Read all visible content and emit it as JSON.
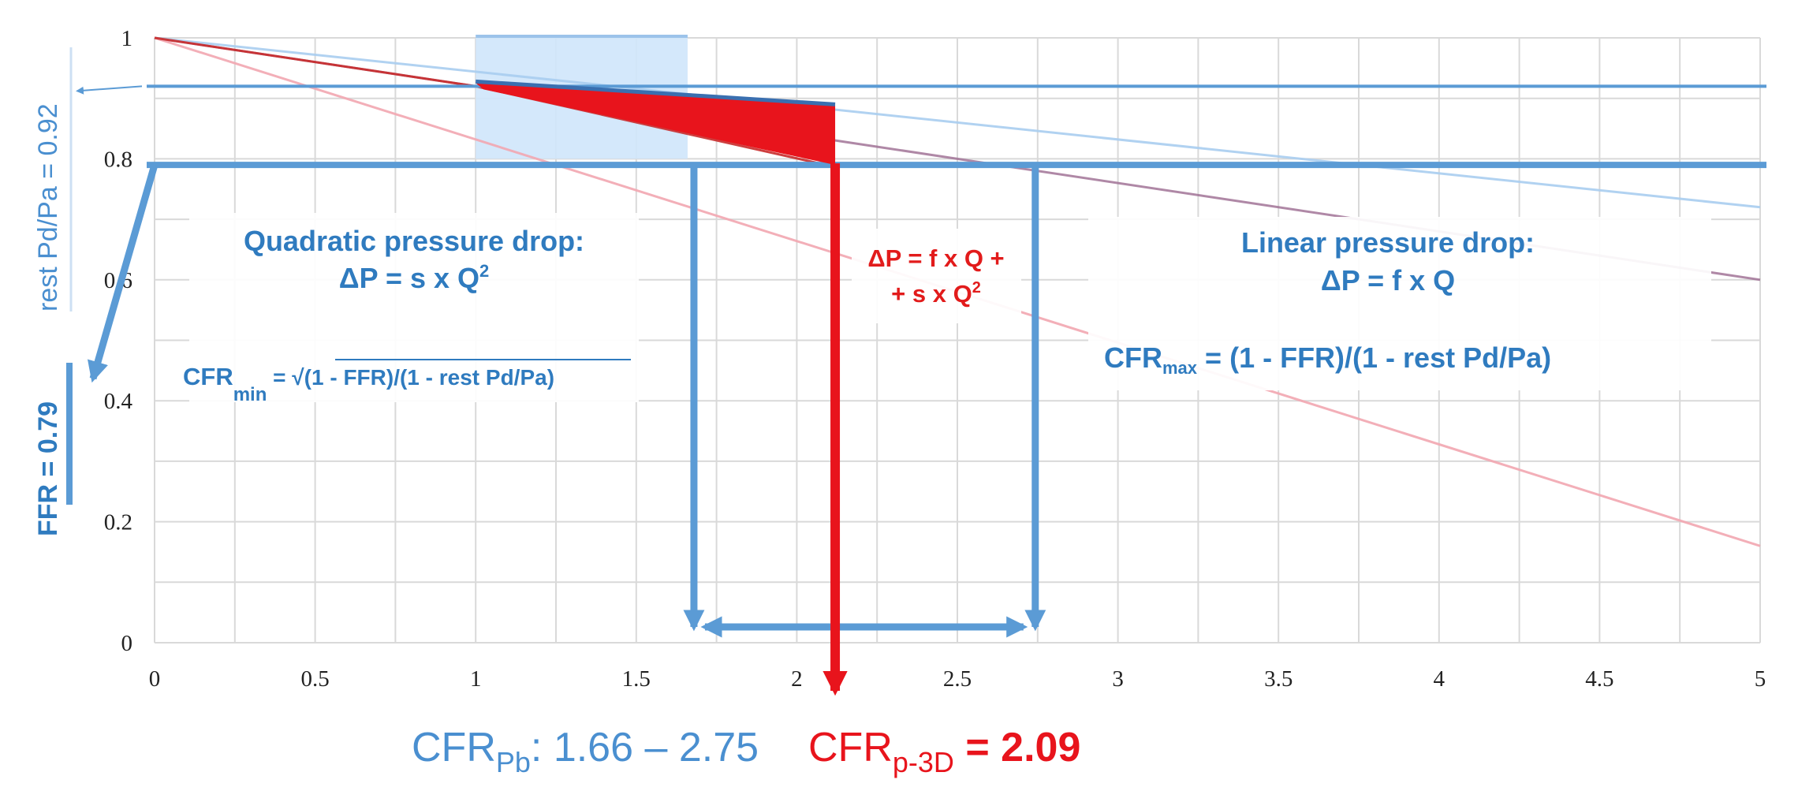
{
  "chart_data": {
    "type": "line",
    "xlim": [
      0,
      5
    ],
    "ylim": [
      0,
      1
    ],
    "x_ticks": [
      "0",
      "0.5",
      "1",
      "1.5",
      "2",
      "2.5",
      "3",
      "3.5",
      "4",
      "4.5",
      "5"
    ],
    "y_ticks": [
      "0",
      "0.2",
      "0.4",
      "0.6",
      "0.8",
      "1"
    ],
    "grid": true,
    "series": [
      {
        "x": [
          0,
          5
        ],
        "y": [
          1,
          0.6
        ]
      },
      {
        "x": [
          0,
          5
        ],
        "y": [
          1,
          0.72
        ]
      },
      {
        "x": [
          0,
          5
        ],
        "y": [
          1,
          0.16
        ]
      },
      {
        "x": [
          0,
          1,
          2.09
        ],
        "y": [
          1,
          0.92,
          0.79
        ]
      }
    ],
    "reference_lines": {
      "rest_pd_pa": 0.92,
      "ffr": 0.79
    },
    "cfr_values": {
      "cfr_min": 1.66,
      "cfr_p3d": 2.09,
      "cfr_max": 2.75
    },
    "labels": {
      "y_rest": "rest  Pd/Pa = 0.92",
      "y_ffr": "FFR = 0.79",
      "quad_title": "Quadratic pressure drop:",
      "quad_formula_main": "ΔP = s x Q",
      "quad_formula_sup": "2",
      "cfrmin_main": "CFR",
      "cfrmin_sub": "min",
      "cfrmin_rest": " = √(1 - FFR)/(1 - rest Pd/Pa)",
      "mixed_line1": "ΔP = f x Q +",
      "mixed_line2_main": "+ s x Q",
      "mixed_line2_sup": "2",
      "lin_title": "Linear pressure drop:",
      "lin_formula": "ΔP = f x Q",
      "cfrmax_main": "CFR",
      "cfrmax_sub": "max",
      "cfrmax_rest": " = (1 - FFR)/(1 - rest Pd/Pa)",
      "pb_main": "CFR",
      "pb_sub": "Pb",
      "pb_value": ": 1.66 – 2.75",
      "p3d_main": "CFR",
      "p3d_sub": "p-3D",
      "p3d_eq": " = ",
      "p3d_value": "2.09"
    },
    "colors": {
      "blue": "#5b9bd5",
      "text_blue": "#2f7bbf",
      "red": "#e8141c",
      "shade": "#cfe5fb"
    }
  }
}
